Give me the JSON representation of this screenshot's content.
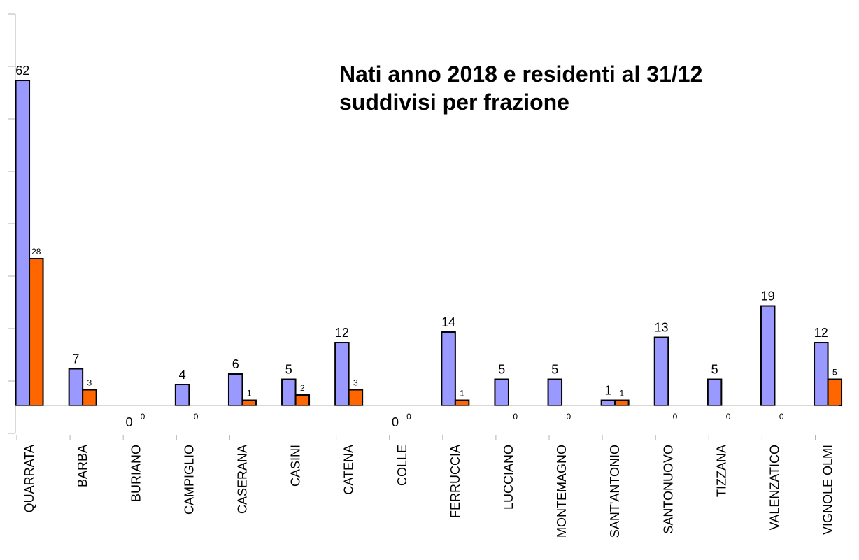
{
  "chart_data": {
    "type": "bar",
    "title": [
      "Nati anno 2018 e residenti al 31/12",
      "suddivisi per frazione"
    ],
    "categories": [
      "QUARRATA",
      "BARBA",
      "BURIANO",
      "CAMPIGLIO",
      "CASERANA",
      "CASINI",
      "CATENA",
      "COLLE",
      "FERRUCCIA",
      "LUCCIANO",
      "MONTEMAGNO",
      "SANT'ANTONIO",
      "SANTONUOVO",
      "TIZZANA",
      "VALENZATICO",
      "VIGNOLE OLMI"
    ],
    "series": [
      {
        "color": "#9999ff",
        "values": [
          62,
          7,
          0,
          4,
          6,
          5,
          12,
          0,
          14,
          5,
          5,
          1,
          13,
          5,
          19,
          12
        ]
      },
      {
        "color": "#ff6600",
        "values": [
          28,
          3,
          0,
          0,
          1,
          2,
          3,
          0,
          1,
          0,
          0,
          1,
          0,
          0,
          0,
          5
        ]
      }
    ],
    "ylim": [
      -5.33,
      74.67
    ],
    "yticks": [
      -5.33,
      4.67,
      14.67,
      24.67,
      34.67,
      44.67,
      54.67,
      64.67,
      74.67
    ]
  }
}
